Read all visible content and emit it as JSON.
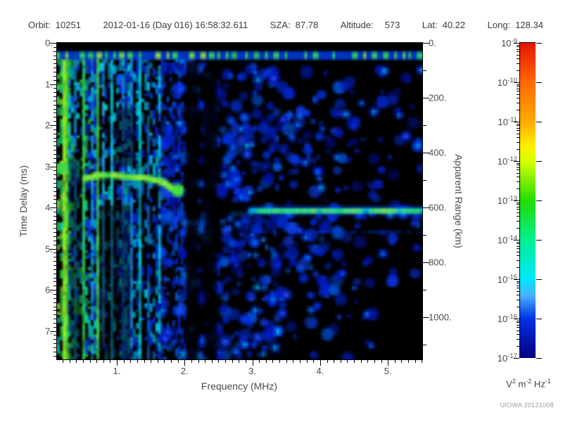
{
  "header": {
    "fields": [
      {
        "label": "Orbit:",
        "value": "10251"
      },
      {
        "label": "",
        "value": "2012-01-16 (Day 016) 16:58:32.611"
      },
      {
        "label": "SZA:",
        "value": "87.78"
      },
      {
        "label": "Altitude:",
        "value": "573",
        "gap": 16
      },
      {
        "label": "Lat:",
        "value": "40.22"
      },
      {
        "label": "Long:",
        "value": "128.34"
      }
    ]
  },
  "axes": {
    "x": {
      "title": "Frequency (MHz)",
      "range": [
        0.117,
        5.507
      ],
      "major": [
        1,
        2,
        3,
        4,
        5
      ],
      "major_labels": [
        "1.",
        "2.",
        "3.",
        "4.",
        "5."
      ],
      "minor_step": 0.1
    },
    "y_left": {
      "title": "Time Delay (ms)",
      "range": [
        0,
        7.69
      ],
      "major": [
        0,
        1,
        2,
        3,
        4,
        5,
        6,
        7
      ],
      "major_labels": [
        "0.",
        "1.",
        "2.",
        "3.",
        "4.",
        "5.",
        "6.",
        "7."
      ],
      "minor_step": 0.1
    },
    "y_right": {
      "title": "Apparent Range (km)",
      "range": [
        0,
        1153
      ],
      "major": [
        0,
        200,
        400,
        600,
        800,
        1000
      ],
      "major_labels": [
        "0.",
        "200.",
        "400.",
        "600.",
        "800.",
        "1000."
      ],
      "minor_step": 100
    }
  },
  "colorbar": {
    "tick_exponents": [
      -9,
      -10,
      -11,
      -12,
      -13,
      -14,
      -15,
      -16,
      -17
    ],
    "gradient": [
      {
        "at": 0.0,
        "c": "#e61400"
      },
      {
        "at": 0.125,
        "c": "#ff6a00"
      },
      {
        "at": 0.25,
        "c": "#ffaa00"
      },
      {
        "at": 0.33,
        "c": "#fff000"
      },
      {
        "at": 0.375,
        "c": "#d8ff00"
      },
      {
        "at": 0.5,
        "c": "#22dd00"
      },
      {
        "at": 0.625,
        "c": "#00f090"
      },
      {
        "at": 0.75,
        "c": "#00e8ff"
      },
      {
        "at": 0.8,
        "c": "#48b4ff"
      },
      {
        "at": 0.875,
        "c": "#0032e6"
      },
      {
        "at": 1.0,
        "c": "#000080"
      }
    ],
    "unit_parts": [
      {
        "t": "V"
      },
      {
        "t": "2",
        "sup": true
      },
      {
        "t": " m"
      },
      {
        "t": "-2",
        "sup": true
      },
      {
        "t": " Hz"
      },
      {
        "t": "-1",
        "sup": true
      }
    ]
  },
  "credit": "UIOWA 20121008",
  "chart_data": {
    "type": "heatmap",
    "title": "",
    "xlabel": "Frequency (MHz)",
    "ylabel_left": "Time Delay (ms)",
    "ylabel_right": "Apparent Range (km)",
    "x_range_mhz": [
      0.1,
      5.5
    ],
    "y_range_ms": [
      0,
      7.69
    ],
    "color_scale": {
      "unit": "V^2 m^-2 Hz^-1",
      "log_min_exp": -17,
      "log_max_exp": -9
    },
    "readings": {
      "transmit_pulse_delay_ms": 0.3,
      "ionospheric_echo": {
        "delay_ms": 3.3,
        "freq_range_mhz": [
          0.55,
          1.9
        ],
        "hook_end_delay_ms": 3.6
      },
      "surface_echo": {
        "delay_ms": 4.06,
        "apparent_range_km": 600,
        "freq_range_mhz": [
          3.0,
          5.5
        ]
      },
      "plasma_harmonic_lines_mhz": [
        0.21,
        0.26,
        0.5,
        0.7,
        0.92,
        1.31,
        1.61
      ]
    },
    "palettes": {
      "noise_blue": [
        "#0012aa",
        "#001ec8",
        "#001ec8",
        "#0028dc",
        "#0032e6",
        "#0032e6",
        "#1446f0",
        "#0055dd"
      ],
      "noise_dim": [
        "#000f96",
        "#0018b4",
        "#001ec8",
        "#0028dc",
        "#0a32e6"
      ],
      "blob_bright": [
        "#2850ff",
        "#0078f0",
        "#00a0e6",
        "#00c8dc"
      ],
      "streak_green": [
        "#14c83c",
        "#28d24b",
        "#3cdc3c",
        "#00c86e",
        "#14b45a",
        "#96e632",
        "#00c8c8"
      ],
      "streak_mix1": [
        "#0032e6",
        "#00aadc",
        "#00d2b4",
        "#28c83c",
        "#0046f0",
        "#1e96e6"
      ],
      "streak_mix2": [
        "#0032e6",
        "#0064e6",
        "#00b4dc",
        "#1e50f0",
        "#00d2c8",
        "#0028c8"
      ],
      "streak_blue1": [
        "#0028dc",
        "#0046e6",
        "#0096dc",
        "#00c8dc",
        "#0032b4"
      ],
      "streak_blue2": [
        "#0028dc",
        "#0040e0",
        "#0060d0",
        "#0020b0"
      ]
    },
    "features": {
      "top_band": {
        "delay": [
          0.2,
          0.41
        ],
        "band_color": "#0038d2",
        "bead_colors": [
          "#28cd50",
          "#3cdc50",
          "#2ee05a"
        ],
        "bright_bead_colors": [
          "#a0e632",
          "#78e63c"
        ]
      },
      "streak_zones": [
        {
          "f": [
            0.117,
            0.3
          ],
          "delay": [
            0.22,
            7.69
          ],
          "density": 0.95,
          "line_chance": 0.3,
          "palette": "streak_green"
        },
        {
          "f": [
            0.3,
            0.65
          ],
          "delay": [
            0.22,
            7.69
          ],
          "density": 0.8,
          "line_chance": 0.25,
          "palette": "streak_mix1"
        },
        {
          "f": [
            0.65,
            1.1
          ],
          "delay": [
            0.22,
            7.69
          ],
          "density": 0.7,
          "line_chance": 0.2,
          "palette": "streak_mix2"
        },
        {
          "f": [
            1.1,
            1.65
          ],
          "delay": [
            0.22,
            7.69
          ],
          "density": 0.58,
          "line_chance": 0.15,
          "palette": "streak_blue1"
        },
        {
          "f": [
            1.65,
            2.02
          ],
          "delay": [
            0.3,
            7.69
          ],
          "density": 0.5,
          "line_chance": 0.1,
          "palette": "streak_blue2"
        }
      ],
      "blob_zones": [
        {
          "f": [
            1.62,
            2.05
          ],
          "delay": [
            0.4,
            7.69
          ],
          "density": 0.7,
          "palette": "noise_blue"
        },
        {
          "f": [
            2.05,
            2.48
          ],
          "delay": [
            0.5,
            7.69
          ],
          "density": 0.55,
          "palette": "noise_blue"
        },
        {
          "f": [
            2.48,
            3.38
          ],
          "delay": [
            0.55,
            7.69
          ],
          "density": 0.85,
          "palette": "noise_blue"
        },
        {
          "f": [
            3.38,
            4.35
          ],
          "delay": [
            0.6,
            7.1
          ],
          "density": 0.5,
          "palette": "noise_blue"
        },
        {
          "f": [
            4.35,
            5.51
          ],
          "delay": [
            0.6,
            4.6
          ],
          "density": 0.33,
          "palette": "noise_dim"
        },
        {
          "f": [
            3.38,
            5.51
          ],
          "delay": [
            4.6,
            7.69
          ],
          "density": 0.14,
          "palette": "noise_dim"
        }
      ],
      "plasma_lines": [
        {
          "f": 0.215,
          "w": 0.02,
          "color": "#aaee22",
          "above": true
        },
        {
          "f": 0.26,
          "w": 0.02,
          "color": "#55ee33",
          "above": true
        },
        {
          "f": 0.38,
          "w": 0.015,
          "color": "#1188cc",
          "dash": true
        },
        {
          "f": 0.5,
          "w": 0.025,
          "color": "#33dd44"
        },
        {
          "f": 0.6,
          "w": 0.02,
          "color": "#2299dd",
          "dash": true
        },
        {
          "f": 0.7,
          "w": 0.025,
          "color": "#44e044"
        },
        {
          "f": 0.8,
          "w": 0.02,
          "color": "#22aadd",
          "dash": true
        },
        {
          "f": 0.92,
          "w": 0.025,
          "color": "#00ccdd"
        },
        {
          "f": 1.05,
          "w": 0.02,
          "color": "#2277cc",
          "dash": true
        },
        {
          "f": 1.18,
          "w": 0.02,
          "color": "#2288dd",
          "dash": true
        },
        {
          "f": 1.31,
          "w": 0.03,
          "color": "#00d8d8",
          "above": true
        },
        {
          "f": 1.45,
          "w": 0.02,
          "color": "#1166bb",
          "dash": true
        },
        {
          "f": 1.61,
          "w": 0.03,
          "color": "#00c8e0",
          "dash": true,
          "above": true
        }
      ],
      "dark_bands": [
        {
          "f": [
            2.02,
            2.21
          ],
          "delay": [
            0.45,
            7.69
          ],
          "alpha": 0.82
        },
        {
          "f": [
            2.29,
            2.47
          ],
          "delay": [
            0.6,
            7.69
          ],
          "alpha": 0.88
        },
        {
          "f": [
            0.74,
            1.2
          ],
          "delay": [
            3.95,
            7.69
          ],
          "alpha": 0.5
        },
        {
          "f": [
            0.3,
            0.48
          ],
          "delay": [
            2.8,
            7.69
          ],
          "alpha": 0.45
        },
        {
          "f": [
            0.98,
            1.28
          ],
          "delay": [
            1.6,
            3.0
          ],
          "alpha": 0.5
        }
      ],
      "iono_trace": {
        "points": [
          [
            0.53,
            3.3
          ],
          [
            0.7,
            3.22
          ],
          [
            0.95,
            3.22
          ],
          [
            1.25,
            3.26
          ],
          [
            1.5,
            3.3
          ],
          [
            1.68,
            3.38
          ],
          [
            1.8,
            3.52
          ],
          [
            1.88,
            3.6
          ]
        ],
        "fringe": "#00b478",
        "core": "#3ce048",
        "bright": [
          "#78e63c",
          "#a5ec3b"
        ],
        "end_blob": {
          "f": 1.9,
          "delay": 3.58,
          "color": "#46e63c"
        },
        "left_blob": {
          "f": [
            0.117,
            0.27
          ],
          "delay": [
            2.92,
            3.16
          ],
          "color": "#3cd84c"
        }
      },
      "surface_trace": {
        "delay": 4.08,
        "f_range": [
          2.98,
          5.507
        ],
        "glow": "#0046ff",
        "fringe": "#00c8e8",
        "core_colors": [
          "#2ee05c",
          "#44e870",
          "#66ec5a"
        ],
        "bright": "#8ce846",
        "core_zones": [
          [
            3.07,
            3.9
          ],
          [
            4.0,
            4.62
          ],
          [
            4.72,
            5.1
          ],
          [
            5.18,
            5.45
          ]
        ],
        "lead": {
          "delay": 4.12,
          "f": [
            2.55,
            2.98
          ],
          "color": "#0077dd"
        },
        "lower": {
          "delay": 4.32,
          "f": [
            1.5,
            2.32
          ],
          "color": "#0055cc"
        },
        "echo2": {
          "delay": 4.55,
          "f": [
            3.05,
            5.51
          ],
          "color": "#0030c8"
        }
      }
    }
  }
}
